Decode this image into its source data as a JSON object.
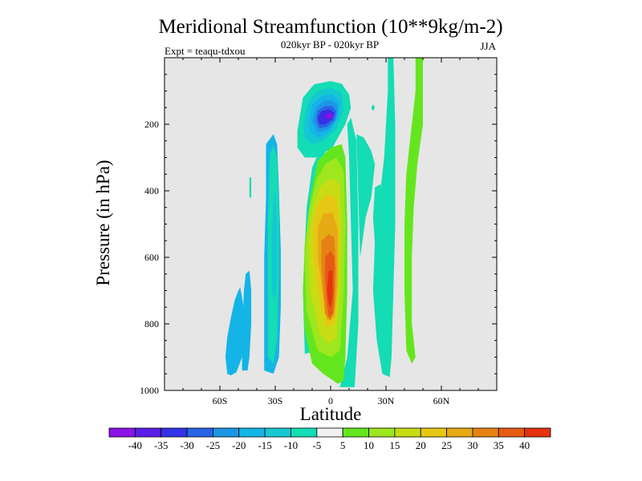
{
  "chart_data": {
    "type": "heatmap",
    "title": "Meridional Streamfunction (10**9kg/m-2)",
    "subtitle": "020kyr BP - 020kyr BP",
    "left_label": "Expt = teaqu-tdxou",
    "right_label": "JJA",
    "xlabel": "Latitude",
    "ylabel": "Pressure (in hPa)",
    "xlim": [
      -90,
      90
    ],
    "ylim": [
      1000,
      0
    ],
    "x_ticks": [
      {
        "value": -60,
        "label": "60S"
      },
      {
        "value": -30,
        "label": "30S"
      },
      {
        "value": 0,
        "label": "0"
      },
      {
        "value": 30,
        "label": "30N"
      },
      {
        "value": 60,
        "label": "60N"
      }
    ],
    "y_ticks": [
      {
        "value": 200,
        "label": "200"
      },
      {
        "value": 400,
        "label": "400"
      },
      {
        "value": 600,
        "label": "600"
      },
      {
        "value": 800,
        "label": "800"
      },
      {
        "value": 1000,
        "label": "1000"
      }
    ],
    "colorbar": {
      "labels": [
        "-40",
        "-35",
        "-30",
        "-25",
        "-20",
        "-15",
        "-10",
        "-5",
        "5",
        "10",
        "15",
        "20",
        "25",
        "30",
        "35",
        "40"
      ],
      "colors": [
        "#8a14e6",
        "#5a1ee6",
        "#3232e6",
        "#2864e6",
        "#1e96e6",
        "#14b4e6",
        "#14c8d2",
        "#14dcb4",
        "#f0f0f0",
        "#64e61e",
        "#9ee61e",
        "#c8dc14",
        "#e6c814",
        "#e6aa14",
        "#e68214",
        "#e65a14",
        "#e6320f"
      ]
    },
    "background_color": "#e6e6e6",
    "regions": [
      {
        "name": "southern-green-tongue",
        "class": 5,
        "points": [
          [
            -56,
            950
          ],
          [
            -57,
            900
          ],
          [
            -56,
            840
          ],
          [
            -54,
            780
          ],
          [
            -52,
            730
          ],
          [
            -50,
            700
          ],
          [
            -49,
            690
          ],
          [
            -48,
            720
          ],
          [
            -47,
            760
          ],
          [
            -47,
            830
          ],
          [
            -48,
            900
          ],
          [
            -51,
            945
          ],
          [
            -54,
            955
          ]
        ]
      },
      {
        "name": "southern-green-strip",
        "class": 5,
        "points": [
          [
            -48,
            940
          ],
          [
            -48,
            850
          ],
          [
            -47,
            700
          ],
          [
            -46,
            650
          ],
          [
            -44,
            640
          ],
          [
            -43,
            700
          ],
          [
            -43,
            800
          ],
          [
            -44,
            900
          ],
          [
            -45,
            940
          ]
        ]
      },
      {
        "name": "green-band-30s",
        "class": 5,
        "points": [
          [
            -36,
            940
          ],
          [
            -36,
            800
          ],
          [
            -36,
            600
          ],
          [
            -35,
            420
          ],
          [
            -35,
            260
          ],
          [
            -31,
            230
          ],
          [
            -29,
            260
          ],
          [
            -28,
            400
          ],
          [
            -27,
            580
          ],
          [
            -27,
            750
          ],
          [
            -28,
            900
          ],
          [
            -31,
            950
          ]
        ]
      },
      {
        "name": "cyan-band-30s",
        "class": 7,
        "points": [
          [
            -34,
            900
          ],
          [
            -34,
            700
          ],
          [
            -34,
            500
          ],
          [
            -33,
            290
          ],
          [
            -31,
            265
          ],
          [
            -29,
            300
          ],
          [
            -28,
            450
          ],
          [
            -28,
            650
          ],
          [
            -29,
            850
          ],
          [
            -31,
            920
          ]
        ]
      },
      {
        "name": "blue-core-30s",
        "class": 6,
        "points": [
          [
            -32,
            700
          ],
          [
            -32,
            550
          ],
          [
            -31,
            420
          ],
          [
            -30,
            400
          ],
          [
            -29,
            500
          ],
          [
            -29,
            650
          ],
          [
            -30,
            730
          ]
        ]
      },
      {
        "name": "tiny-cyan-speck",
        "class": 7,
        "points": [
          [
            -44,
            420
          ],
          [
            -44,
            360
          ],
          [
            -43,
            360
          ],
          [
            -43,
            420
          ]
        ]
      },
      {
        "name": "southern-rim-cyan",
        "class": 7,
        "points": [
          [
            -14,
            890
          ],
          [
            -15,
            700
          ],
          [
            -13,
            450
          ],
          [
            -10,
            330
          ],
          [
            -6,
            280
          ],
          [
            0,
            290
          ],
          [
            -3,
            380
          ],
          [
            -6,
            500
          ],
          [
            -7,
            700
          ],
          [
            -6,
            880
          ]
        ]
      },
      {
        "name": "upper-cell-rim",
        "class": 7,
        "points": [
          [
            -18,
            220
          ],
          [
            -15,
            120
          ],
          [
            -9,
            80
          ],
          [
            0,
            70
          ],
          [
            6,
            78
          ],
          [
            10,
            110
          ],
          [
            11,
            150
          ],
          [
            8,
            200
          ],
          [
            1,
            270
          ],
          [
            -8,
            300
          ],
          [
            -14,
            300
          ],
          [
            -18,
            270
          ]
        ]
      },
      {
        "name": "upper-cell-c6",
        "class": 6,
        "points": [
          [
            -15,
            200
          ],
          [
            -12,
            130
          ],
          [
            -7,
            100
          ],
          [
            0,
            90
          ],
          [
            6,
            105
          ],
          [
            7,
            160
          ],
          [
            3,
            215
          ],
          [
            -4,
            250
          ],
          [
            -10,
            260
          ],
          [
            -14,
            240
          ]
        ]
      },
      {
        "name": "upper-cell-c5",
        "class": 5,
        "points": [
          [
            -12,
            195
          ],
          [
            -10,
            140
          ],
          [
            -5,
            115
          ],
          [
            1,
            110
          ],
          [
            5,
            130
          ],
          [
            4,
            180
          ],
          [
            0,
            220
          ],
          [
            -6,
            240
          ],
          [
            -11,
            225
          ]
        ]
      },
      {
        "name": "upper-cell-c4",
        "class": 4,
        "points": [
          [
            -10,
            190
          ],
          [
            -8,
            150
          ],
          [
            -4,
            130
          ],
          [
            1,
            128
          ],
          [
            4,
            145
          ],
          [
            3,
            185
          ],
          [
            -1,
            215
          ],
          [
            -7,
            225
          ]
        ]
      },
      {
        "name": "upper-cell-c3",
        "class": 3,
        "points": [
          [
            -8,
            190
          ],
          [
            -7,
            158
          ],
          [
            -3,
            145
          ],
          [
            1,
            145
          ],
          [
            3,
            160
          ],
          [
            2,
            188
          ],
          [
            -2,
            208
          ],
          [
            -6,
            212
          ]
        ]
      },
      {
        "name": "upper-cell-c2",
        "class": 2,
        "points": [
          [
            -7,
            180
          ],
          [
            -5,
            160
          ],
          [
            -1,
            155
          ],
          [
            2,
            165
          ],
          [
            1,
            185
          ],
          [
            -3,
            200
          ],
          [
            -6,
            200
          ]
        ]
      },
      {
        "name": "upper-cell-c1",
        "class": 1,
        "points": [
          [
            -5,
            180
          ],
          [
            -3,
            165
          ],
          [
            0,
            162
          ],
          [
            2,
            170
          ],
          [
            1,
            182
          ],
          [
            -2,
            190
          ]
        ]
      },
      {
        "name": "upper-cell-c0",
        "class": 0,
        "points": [
          [
            -3,
            178
          ],
          [
            -1,
            168
          ],
          [
            2,
            172
          ],
          [
            0,
            182
          ]
        ]
      },
      {
        "name": "northern-rim-cyan",
        "class": 7,
        "points": [
          [
            5,
            990
          ],
          [
            9,
            900
          ],
          [
            12,
            700
          ],
          [
            11,
            500
          ],
          [
            10,
            300
          ],
          [
            9,
            200
          ],
          [
            11,
            180
          ],
          [
            14,
            250
          ],
          [
            15,
            500
          ],
          [
            15,
            800
          ],
          [
            13,
            990
          ]
        ]
      },
      {
        "name": "cyan-spot-near-equator",
        "class": 7,
        "points": [
          [
            22,
            150
          ],
          [
            23,
            140
          ],
          [
            24,
            150
          ],
          [
            23,
            160
          ]
        ]
      },
      {
        "name": "main-cell-c9",
        "class": 9,
        "points": [
          [
            -14,
            820
          ],
          [
            -15,
            700
          ],
          [
            -14,
            560
          ],
          [
            -11,
            420
          ],
          [
            -7,
            310
          ],
          [
            0,
            270
          ],
          [
            6,
            260
          ],
          [
            8,
            300
          ],
          [
            9,
            500
          ],
          [
            9,
            700
          ],
          [
            8,
            900
          ],
          [
            7,
            970
          ],
          [
            4,
            980
          ],
          [
            -4,
            950
          ],
          [
            -10,
            920
          ]
        ]
      },
      {
        "name": "main-cell-c10",
        "class": 10,
        "points": [
          [
            -13,
            760
          ],
          [
            -14,
            600
          ],
          [
            -12,
            470
          ],
          [
            -8,
            370
          ],
          [
            -3,
            320
          ],
          [
            3,
            300
          ],
          [
            7,
            340
          ],
          [
            8,
            500
          ],
          [
            7,
            720
          ],
          [
            5,
            880
          ],
          [
            0,
            900
          ],
          [
            -7,
            880
          ]
        ]
      },
      {
        "name": "main-cell-c11",
        "class": 11,
        "points": [
          [
            -11,
            700
          ],
          [
            -12,
            560
          ],
          [
            -10,
            460
          ],
          [
            -6,
            390
          ],
          [
            0,
            360
          ],
          [
            5,
            380
          ],
          [
            6,
            500
          ],
          [
            5,
            700
          ],
          [
            3,
            840
          ],
          [
            -1,
            860
          ],
          [
            -6,
            830
          ]
        ]
      },
      {
        "name": "main-cell-c12",
        "class": 12,
        "points": [
          [
            -9,
            620
          ],
          [
            -10,
            520
          ],
          [
            -7,
            440
          ],
          [
            -2,
            410
          ],
          [
            3,
            420
          ],
          [
            5,
            520
          ],
          [
            4,
            700
          ],
          [
            2,
            800
          ],
          [
            -2,
            810
          ],
          [
            -5,
            760
          ]
        ]
      },
      {
        "name": "main-cell-c13",
        "class": 13,
        "points": [
          [
            -7,
            600
          ],
          [
            -7,
            510
          ],
          [
            -4,
            470
          ],
          [
            1,
            465
          ],
          [
            4,
            520
          ],
          [
            4,
            680
          ],
          [
            2,
            780
          ],
          [
            -2,
            790
          ],
          [
            -4,
            720
          ]
        ]
      },
      {
        "name": "main-cell-c14",
        "class": 14,
        "points": [
          [
            -5,
            620
          ],
          [
            -5,
            550
          ],
          [
            -1,
            530
          ],
          [
            2,
            540
          ],
          [
            3,
            640
          ],
          [
            2,
            760
          ],
          [
            0,
            790
          ],
          [
            -3,
            770
          ],
          [
            -4,
            700
          ]
        ]
      },
      {
        "name": "main-cell-c15",
        "class": 15,
        "points": [
          [
            -3,
            660
          ],
          [
            -3,
            600
          ],
          [
            0,
            580
          ],
          [
            2,
            600
          ],
          [
            2,
            700
          ],
          [
            1,
            770
          ],
          [
            -1,
            780
          ],
          [
            -2,
            740
          ]
        ]
      },
      {
        "name": "main-cell-c16",
        "class": 16,
        "points": [
          [
            -2,
            700
          ],
          [
            -1,
            640
          ],
          [
            1,
            640
          ],
          [
            1,
            720
          ],
          [
            0,
            750
          ],
          [
            -1,
            740
          ]
        ]
      },
      {
        "name": "cyan-band-20n",
        "class": 7,
        "points": [
          [
            14,
            230
          ],
          [
            18,
            240
          ],
          [
            22,
            280
          ],
          [
            24,
            320
          ],
          [
            22,
            420
          ],
          [
            19,
            480
          ],
          [
            17,
            560
          ],
          [
            16,
            600
          ],
          [
            15,
            420
          ]
        ]
      },
      {
        "name": "cyan-band-30n",
        "class": 7,
        "points": [
          [
            24,
            390
          ],
          [
            27,
            380
          ],
          [
            28,
            450
          ],
          [
            26,
            520
          ],
          [
            24,
            560
          ],
          [
            23,
            480
          ]
        ]
      },
      {
        "name": "cyan-band-northern-tall",
        "class": 7,
        "points": [
          [
            31,
            0
          ],
          [
            34,
            0
          ],
          [
            35,
            200
          ],
          [
            35,
            500
          ],
          [
            34,
            700
          ],
          [
            33,
            900
          ],
          [
            32,
            960
          ],
          [
            28,
            950
          ],
          [
            25,
            850
          ],
          [
            23,
            700
          ],
          [
            24,
            550
          ],
          [
            27,
            400
          ],
          [
            29,
            300
          ],
          [
            30,
            200
          ],
          [
            31,
            100
          ]
        ]
      },
      {
        "name": "green-band-50n",
        "class": 9,
        "points": [
          [
            46,
            0
          ],
          [
            50,
            0
          ],
          [
            50,
            200
          ],
          [
            47,
            320
          ],
          [
            45,
            450
          ],
          [
            44,
            600
          ],
          [
            44,
            800
          ],
          [
            46,
            900
          ],
          [
            44,
            920
          ],
          [
            41,
            880
          ],
          [
            40,
            700
          ],
          [
            40,
            500
          ],
          [
            41,
            350
          ],
          [
            44,
            200
          ],
          [
            46,
            100
          ]
        ]
      }
    ]
  }
}
